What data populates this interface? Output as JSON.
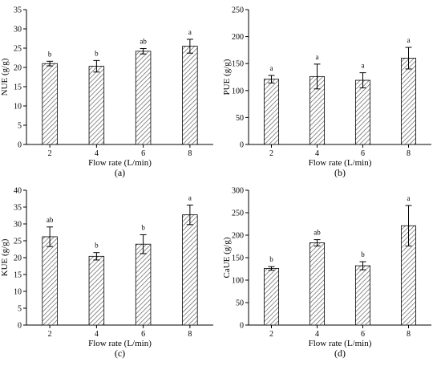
{
  "figure": {
    "panel_labels": [
      "(a)",
      "(b)",
      "(c)",
      "(d)"
    ]
  },
  "chart_data": [
    {
      "panel": "(a)",
      "type": "bar",
      "categories": [
        "2",
        "4",
        "6",
        "8"
      ],
      "values": [
        21.0,
        20.3,
        24.2,
        25.5
      ],
      "errors": [
        0.6,
        1.5,
        0.7,
        1.8
      ],
      "significance": [
        "b",
        "b",
        "ab",
        "a"
      ],
      "xlabel": "Flow rate (L/min)",
      "ylabel": "NUE (g/g)",
      "ylim": [
        0,
        35
      ],
      "yticks": [
        0,
        5,
        10,
        15,
        20,
        25,
        30,
        35
      ],
      "bar_fill": "hatched",
      "bar_color": "#ffffff",
      "hatch_color": "#555555",
      "grid": false,
      "legend": false
    },
    {
      "panel": "(b)",
      "type": "bar",
      "categories": [
        "2",
        "4",
        "6",
        "8"
      ],
      "values": [
        121,
        126,
        119,
        160
      ],
      "errors": [
        7,
        23,
        14,
        20
      ],
      "significance": [
        "a",
        "a",
        "a",
        "a"
      ],
      "xlabel": "Flow rate (L/min)",
      "ylabel": "PUE (g/g)",
      "ylim": [
        0,
        250
      ],
      "yticks": [
        0,
        50,
        100,
        150,
        200,
        250
      ],
      "bar_fill": "hatched",
      "bar_color": "#ffffff",
      "hatch_color": "#555555",
      "grid": false,
      "legend": false
    },
    {
      "panel": "(c)",
      "type": "bar",
      "categories": [
        "2",
        "4",
        "6",
        "8"
      ],
      "values": [
        26.2,
        20.4,
        24.0,
        32.7
      ],
      "errors": [
        2.9,
        1.1,
        2.8,
        2.9
      ],
      "significance": [
        "ab",
        "b",
        "b",
        "a"
      ],
      "xlabel": "Flow rate (L/min)",
      "ylabel": "KUE (g/g)",
      "ylim": [
        0,
        40
      ],
      "yticks": [
        0,
        5,
        10,
        15,
        20,
        25,
        30,
        35,
        40
      ],
      "bar_fill": "hatched",
      "bar_color": "#ffffff",
      "hatch_color": "#555555",
      "grid": false,
      "legend": false
    },
    {
      "panel": "(d)",
      "type": "bar",
      "categories": [
        "2",
        "4",
        "6",
        "8"
      ],
      "values": [
        126,
        183,
        132,
        221
      ],
      "errors": [
        4,
        7,
        9,
        45
      ],
      "significance": [
        "b",
        "ab",
        "b",
        "a"
      ],
      "xlabel": "Flow rate (L/min)",
      "ylabel": "CaUE (g/g)",
      "ylim": [
        0,
        300
      ],
      "yticks": [
        0,
        50,
        100,
        150,
        200,
        250,
        300
      ],
      "bar_fill": "hatched",
      "bar_color": "#ffffff",
      "hatch_color": "#555555",
      "grid": false,
      "legend": false
    }
  ]
}
